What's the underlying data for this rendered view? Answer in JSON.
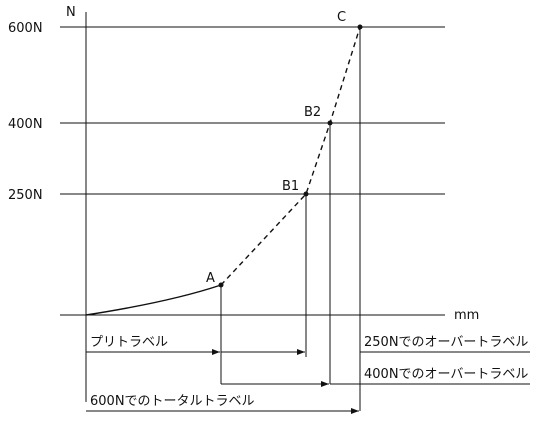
{
  "axes": {
    "y_label": "N",
    "x_label": "mm",
    "ticks": [
      "600N",
      "400N",
      "250N"
    ]
  },
  "points": {
    "A": "A",
    "B1": "B1",
    "B2": "B2",
    "C": "C"
  },
  "travel_labels": {
    "pretravel": "プリトラベル",
    "overtravel_250": "250Nでのオーバートラベル",
    "overtravel_400": "400Nでのオーバートラベル",
    "total_600": "600Nでのトータルトラベル"
  }
}
